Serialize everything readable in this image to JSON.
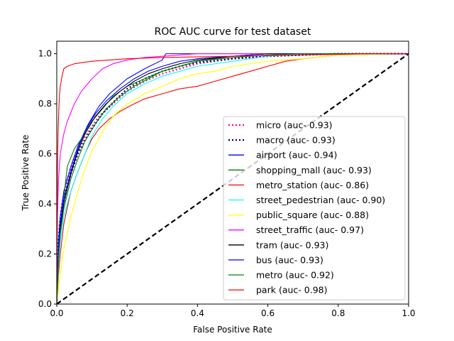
{
  "chart_data": {
    "type": "line",
    "title": "ROC AUC curve for test dataset",
    "xlabel": "False Positive Rate",
    "ylabel": "True Positive Rate",
    "xlim": [
      0.0,
      1.0
    ],
    "ylim": [
      0.0,
      1.05
    ],
    "xticks": [
      0.0,
      0.2,
      0.4,
      0.6,
      0.8,
      1.0
    ],
    "yticks": [
      0.0,
      0.2,
      0.4,
      0.6,
      0.8,
      1.0
    ],
    "xtick_labels": [
      "0.0",
      "0.2",
      "0.4",
      "0.6",
      "0.8",
      "1.0"
    ],
    "ytick_labels": [
      "0.0",
      "0.2",
      "0.4",
      "0.6",
      "0.8",
      "1.0"
    ],
    "grid": false,
    "legend_position": "lower-right",
    "chance_line": {
      "style": "dashed",
      "color": "#000000",
      "points": [
        [
          0,
          0
        ],
        [
          1,
          1
        ]
      ]
    },
    "series": [
      {
        "name": "micro (auc- 0.93)",
        "color": "#ff1493",
        "style": "dotted",
        "legend_text": "micro (auc- 0.93)",
        "points": [
          [
            0,
            0
          ],
          [
            0.003,
            0.2
          ],
          [
            0.008,
            0.32
          ],
          [
            0.015,
            0.4
          ],
          [
            0.03,
            0.5
          ],
          [
            0.05,
            0.58
          ],
          [
            0.08,
            0.67
          ],
          [
            0.12,
            0.75
          ],
          [
            0.16,
            0.8
          ],
          [
            0.2,
            0.85
          ],
          [
            0.25,
            0.89
          ],
          [
            0.3,
            0.92
          ],
          [
            0.35,
            0.94
          ],
          [
            0.4,
            0.96
          ],
          [
            0.5,
            0.98
          ],
          [
            0.6,
            0.99
          ],
          [
            0.7,
            0.995
          ],
          [
            0.8,
            1.0
          ],
          [
            1.0,
            1.0
          ]
        ]
      },
      {
        "name": "macro (auc- 0.93)",
        "color": "#00008b",
        "style": "dotted",
        "legend_text": "macro (auc- 0.93)",
        "points": [
          [
            0,
            0
          ],
          [
            0.003,
            0.22
          ],
          [
            0.01,
            0.33
          ],
          [
            0.02,
            0.42
          ],
          [
            0.04,
            0.52
          ],
          [
            0.06,
            0.6
          ],
          [
            0.09,
            0.68
          ],
          [
            0.13,
            0.76
          ],
          [
            0.17,
            0.82
          ],
          [
            0.2,
            0.86
          ],
          [
            0.25,
            0.9
          ],
          [
            0.3,
            0.93
          ],
          [
            0.35,
            0.95
          ],
          [
            0.4,
            0.965
          ],
          [
            0.5,
            0.98
          ],
          [
            0.6,
            0.99
          ],
          [
            0.8,
            1.0
          ],
          [
            1.0,
            1.0
          ]
        ]
      },
      {
        "name": "airport (auc- 0.94)",
        "color": "#0000ff",
        "style": "solid",
        "legend_text": "airport (auc- 0.94)",
        "points": [
          [
            0,
            0
          ],
          [
            0.005,
            0.25
          ],
          [
            0.01,
            0.35
          ],
          [
            0.02,
            0.45
          ],
          [
            0.04,
            0.55
          ],
          [
            0.06,
            0.63
          ],
          [
            0.09,
            0.72
          ],
          [
            0.12,
            0.79
          ],
          [
            0.15,
            0.84
          ],
          [
            0.2,
            0.9
          ],
          [
            0.25,
            0.94
          ],
          [
            0.3,
            0.975
          ],
          [
            0.31,
            1.0
          ],
          [
            1.0,
            1.0
          ]
        ]
      },
      {
        "name": "shopping_mall (auc- 0.93)",
        "color": "#008000",
        "style": "solid",
        "legend_text": "shopping_mall (auc- 0.93)",
        "points": [
          [
            0,
            0
          ],
          [
            0.005,
            0.2
          ],
          [
            0.01,
            0.3
          ],
          [
            0.03,
            0.55
          ],
          [
            0.05,
            0.62
          ],
          [
            0.07,
            0.66
          ],
          [
            0.1,
            0.73
          ],
          [
            0.13,
            0.78
          ],
          [
            0.16,
            0.83
          ],
          [
            0.2,
            0.87
          ],
          [
            0.25,
            0.9
          ],
          [
            0.3,
            0.93
          ],
          [
            0.35,
            0.95
          ],
          [
            0.4,
            0.97
          ],
          [
            0.5,
            0.99
          ],
          [
            0.6,
            1.0
          ],
          [
            1.0,
            1.0
          ]
        ]
      },
      {
        "name": "metro_station (auc- 0.86)",
        "color": "#ff0000",
        "style": "solid",
        "legend_text": "metro_station (auc- 0.86)",
        "points": [
          [
            0,
            0
          ],
          [
            0.005,
            0.12
          ],
          [
            0.01,
            0.2
          ],
          [
            0.02,
            0.32
          ],
          [
            0.04,
            0.45
          ],
          [
            0.06,
            0.53
          ],
          [
            0.08,
            0.6
          ],
          [
            0.1,
            0.66
          ],
          [
            0.12,
            0.7
          ],
          [
            0.15,
            0.74
          ],
          [
            0.18,
            0.77
          ],
          [
            0.22,
            0.8
          ],
          [
            0.25,
            0.82
          ],
          [
            0.3,
            0.84
          ],
          [
            0.35,
            0.86
          ],
          [
            0.4,
            0.87
          ],
          [
            0.45,
            0.89
          ],
          [
            0.5,
            0.91
          ],
          [
            0.55,
            0.93
          ],
          [
            0.6,
            0.95
          ],
          [
            0.65,
            0.97
          ],
          [
            0.7,
            0.98
          ],
          [
            0.8,
            0.995
          ],
          [
            0.9,
            1.0
          ],
          [
            1.0,
            1.0
          ]
        ]
      },
      {
        "name": "street_pedestrian (auc- 0.90)",
        "color": "#00ffff",
        "style": "solid",
        "legend_text": "street_pedestrian (auc- 0.90)",
        "points": [
          [
            0,
            0
          ],
          [
            0.005,
            0.15
          ],
          [
            0.01,
            0.25
          ],
          [
            0.02,
            0.35
          ],
          [
            0.04,
            0.45
          ],
          [
            0.06,
            0.53
          ],
          [
            0.08,
            0.6
          ],
          [
            0.1,
            0.67
          ],
          [
            0.13,
            0.74
          ],
          [
            0.16,
            0.79
          ],
          [
            0.2,
            0.84
          ],
          [
            0.25,
            0.88
          ],
          [
            0.3,
            0.91
          ],
          [
            0.35,
            0.93
          ],
          [
            0.4,
            0.95
          ],
          [
            0.5,
            0.97
          ],
          [
            0.6,
            0.99
          ],
          [
            0.7,
            1.0
          ],
          [
            1.0,
            1.0
          ]
        ]
      },
      {
        "name": "public_square (auc- 0.88)",
        "color": "#ffff00",
        "style": "solid",
        "legend_text": "public_square (auc- 0.88)",
        "points": [
          [
            0,
            0
          ],
          [
            0.01,
            0.12
          ],
          [
            0.02,
            0.22
          ],
          [
            0.04,
            0.35
          ],
          [
            0.06,
            0.45
          ],
          [
            0.08,
            0.54
          ],
          [
            0.1,
            0.61
          ],
          [
            0.13,
            0.69
          ],
          [
            0.16,
            0.75
          ],
          [
            0.2,
            0.8
          ],
          [
            0.25,
            0.84
          ],
          [
            0.3,
            0.87
          ],
          [
            0.35,
            0.9
          ],
          [
            0.4,
            0.92
          ],
          [
            0.45,
            0.93
          ],
          [
            0.5,
            0.95
          ],
          [
            0.55,
            0.96
          ],
          [
            0.6,
            0.97
          ],
          [
            0.7,
            0.98
          ],
          [
            0.8,
            0.995
          ],
          [
            1.0,
            1.0
          ]
        ]
      },
      {
        "name": "street_traffic (auc- 0.97)",
        "color": "#ff00ff",
        "style": "solid",
        "legend_text": "street_traffic (auc- 0.97)",
        "points": [
          [
            0,
            0
          ],
          [
            0.002,
            0.35
          ],
          [
            0.005,
            0.5
          ],
          [
            0.01,
            0.6
          ],
          [
            0.02,
            0.68
          ],
          [
            0.03,
            0.73
          ],
          [
            0.05,
            0.8
          ],
          [
            0.07,
            0.85
          ],
          [
            0.1,
            0.9
          ],
          [
            0.13,
            0.94
          ],
          [
            0.16,
            0.96
          ],
          [
            0.2,
            0.975
          ],
          [
            0.25,
            0.985
          ],
          [
            0.3,
            0.99
          ],
          [
            0.4,
            1.0
          ],
          [
            1.0,
            1.0
          ]
        ]
      },
      {
        "name": "tram (auc- 0.93)",
        "color": "#000000",
        "style": "solid",
        "legend_text": "tram (auc- 0.93)",
        "points": [
          [
            0,
            0
          ],
          [
            0.005,
            0.2
          ],
          [
            0.01,
            0.3
          ],
          [
            0.02,
            0.4
          ],
          [
            0.04,
            0.52
          ],
          [
            0.06,
            0.61
          ],
          [
            0.08,
            0.68
          ],
          [
            0.11,
            0.75
          ],
          [
            0.14,
            0.8
          ],
          [
            0.18,
            0.85
          ],
          [
            0.22,
            0.89
          ],
          [
            0.26,
            0.92
          ],
          [
            0.3,
            0.94
          ],
          [
            0.35,
            0.96
          ],
          [
            0.4,
            0.975
          ],
          [
            0.5,
            0.99
          ],
          [
            0.6,
            1.0
          ],
          [
            1.0,
            1.0
          ]
        ]
      },
      {
        "name": "bus (auc- 0.93)",
        "color": "#0000ff",
        "style": "solid",
        "legend_text": "bus (auc- 0.93)",
        "points": [
          [
            0,
            0
          ],
          [
            0.005,
            0.22
          ],
          [
            0.01,
            0.32
          ],
          [
            0.02,
            0.42
          ],
          [
            0.04,
            0.53
          ],
          [
            0.06,
            0.62
          ],
          [
            0.08,
            0.69
          ],
          [
            0.11,
            0.76
          ],
          [
            0.14,
            0.81
          ],
          [
            0.18,
            0.86
          ],
          [
            0.22,
            0.9
          ],
          [
            0.26,
            0.93
          ],
          [
            0.3,
            0.95
          ],
          [
            0.35,
            0.97
          ],
          [
            0.4,
            0.98
          ],
          [
            0.5,
            0.99
          ],
          [
            0.6,
            1.0
          ],
          [
            1.0,
            1.0
          ]
        ]
      },
      {
        "name": "metro (auc- 0.92)",
        "color": "#008000",
        "style": "solid",
        "legend_text": "metro (auc- 0.92)",
        "points": [
          [
            0,
            0
          ],
          [
            0.005,
            0.18
          ],
          [
            0.01,
            0.28
          ],
          [
            0.02,
            0.38
          ],
          [
            0.04,
            0.5
          ],
          [
            0.06,
            0.58
          ],
          [
            0.08,
            0.65
          ],
          [
            0.11,
            0.72
          ],
          [
            0.14,
            0.78
          ],
          [
            0.18,
            0.83
          ],
          [
            0.22,
            0.87
          ],
          [
            0.26,
            0.9
          ],
          [
            0.3,
            0.93
          ],
          [
            0.35,
            0.95
          ],
          [
            0.4,
            0.97
          ],
          [
            0.5,
            0.985
          ],
          [
            0.6,
            0.995
          ],
          [
            0.7,
            1.0
          ],
          [
            1.0,
            1.0
          ]
        ]
      },
      {
        "name": "park (auc- 0.98)",
        "color": "#ff0000",
        "style": "solid",
        "legend_text": "park (auc- 0.98)",
        "points": [
          [
            0,
            0
          ],
          [
            0.002,
            0.55
          ],
          [
            0.004,
            0.7
          ],
          [
            0.006,
            0.78
          ],
          [
            0.008,
            0.84
          ],
          [
            0.01,
            0.87
          ],
          [
            0.015,
            0.91
          ],
          [
            0.02,
            0.94
          ],
          [
            0.03,
            0.95
          ],
          [
            0.05,
            0.96
          ],
          [
            0.1,
            0.97
          ],
          [
            0.2,
            0.98
          ],
          [
            0.3,
            0.985
          ],
          [
            0.5,
            0.99
          ],
          [
            0.7,
            0.995
          ],
          [
            0.9,
            1.0
          ],
          [
            1.0,
            1.0
          ]
        ]
      }
    ]
  }
}
